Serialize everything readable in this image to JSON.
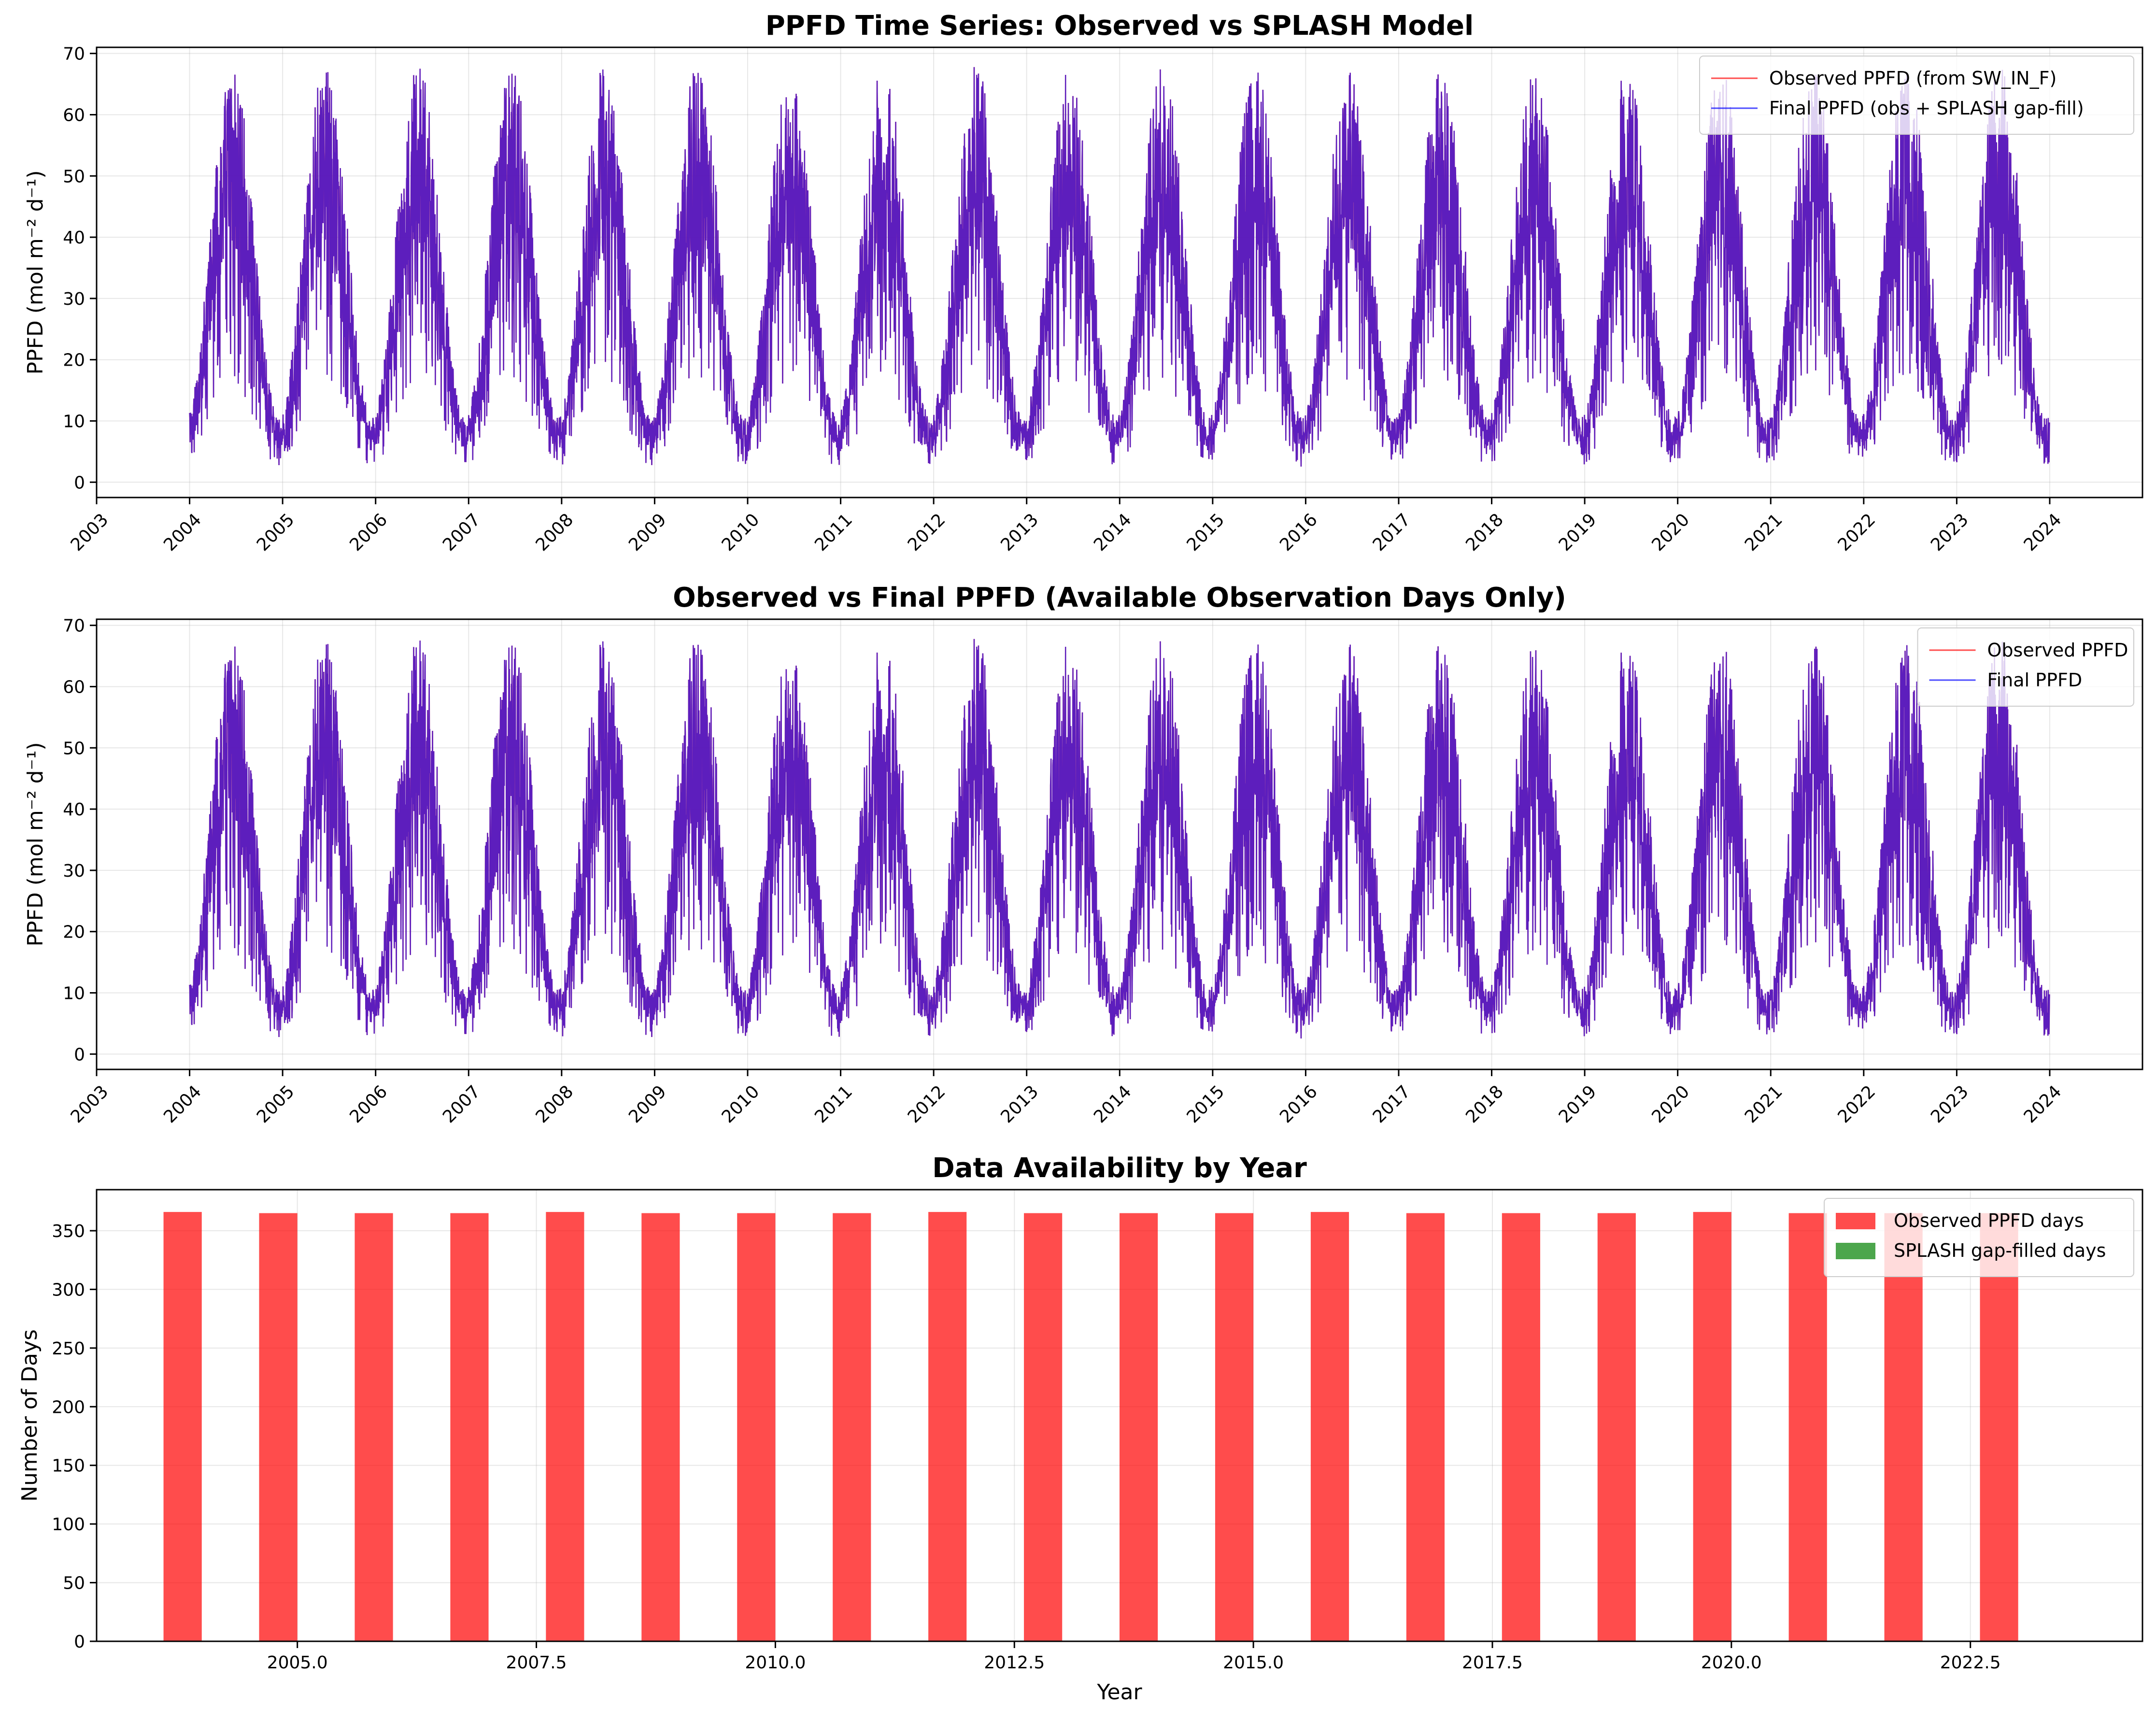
{
  "chart_data": [
    {
      "type": "line",
      "title": "PPFD Time Series: Observed vs SPLASH Model",
      "ylabel": "PPFD (mol m⁻² d⁻¹)",
      "xlabel": "",
      "xlim": [
        "2003-01-01",
        "2024-12-31"
      ],
      "ylim": [
        -2.5,
        71
      ],
      "x_ticks": [
        "2003",
        "2004",
        "2005",
        "2006",
        "2007",
        "2008",
        "2009",
        "2010",
        "2011",
        "2012",
        "2013",
        "2014",
        "2015",
        "2016",
        "2017",
        "2018",
        "2019",
        "2020",
        "2021",
        "2022",
        "2023",
        "2024"
      ],
      "y_ticks": [
        0,
        10,
        20,
        30,
        40,
        50,
        60,
        70
      ],
      "grid": true,
      "legend": "top-right",
      "x_range": [
        "2004-01-01",
        "2023-12-31"
      ],
      "seasonal_cycle": {
        "winter_min": 2,
        "summer_max": 65,
        "peak_month": "June"
      },
      "series": [
        {
          "name": "Observed PPFD (from SW_IN_F)",
          "color": "#ff0000"
        },
        {
          "name": "Final PPFD (obs + SPLASH gap-fill)",
          "color": "#0000ff"
        }
      ],
      "colors": {
        "overlap": "#4b1ccc"
      }
    },
    {
      "type": "line",
      "title": "Observed vs Final PPFD (Available Observation Days Only)",
      "ylabel": "PPFD (mol m⁻² d⁻¹)",
      "xlabel": "",
      "xlim": [
        "2003-01-01",
        "2024-12-31"
      ],
      "ylim": [
        -2.5,
        71
      ],
      "x_ticks": [
        "2003",
        "2004",
        "2005",
        "2006",
        "2007",
        "2008",
        "2009",
        "2010",
        "2011",
        "2012",
        "2013",
        "2014",
        "2015",
        "2016",
        "2017",
        "2018",
        "2019",
        "2020",
        "2021",
        "2022",
        "2023",
        "2024"
      ],
      "y_ticks": [
        0,
        10,
        20,
        30,
        40,
        50,
        60,
        70
      ],
      "grid": true,
      "legend": "top-right",
      "x_range": [
        "2004-01-01",
        "2023-12-31"
      ],
      "seasonal_cycle": {
        "winter_min": 2,
        "summer_max": 65,
        "peak_month": "June"
      },
      "series": [
        {
          "name": "Observed PPFD",
          "color": "#ff0000"
        },
        {
          "name": "Final PPFD",
          "color": "#0000ff"
        }
      ],
      "colors": {
        "overlap": "#4b1ccc"
      }
    },
    {
      "type": "bar",
      "title": "Data Availability by Year",
      "xlabel": "Year",
      "ylabel": "Number of Days",
      "xlim": [
        2002.9,
        2024.3
      ],
      "ylim": [
        0,
        385
      ],
      "x_ticks": [
        "2005.0",
        "2007.5",
        "2010.0",
        "2012.5",
        "2015.0",
        "2017.5",
        "2020.0",
        "2022.5"
      ],
      "x_tick_values": [
        2005.0,
        2007.5,
        2010.0,
        2012.5,
        2015.0,
        2017.5,
        2020.0,
        2022.5
      ],
      "y_ticks": [
        0,
        50,
        100,
        150,
        200,
        250,
        300,
        350
      ],
      "grid": true,
      "legend": "top-right",
      "categories": [
        2004,
        2005,
        2006,
        2007,
        2008,
        2009,
        2010,
        2011,
        2012,
        2013,
        2014,
        2015,
        2016,
        2017,
        2018,
        2019,
        2020,
        2021,
        2022,
        2023
      ],
      "series": [
        {
          "name": "Observed PPFD days",
          "color": "#ff0000",
          "values": [
            366,
            365,
            365,
            365,
            366,
            365,
            365,
            365,
            366,
            365,
            365,
            365,
            366,
            365,
            365,
            365,
            366,
            365,
            365,
            365
          ]
        },
        {
          "name": "SPLASH gap-filled days",
          "color": "#008000",
          "values": [
            0,
            0,
            0,
            0,
            0,
            0,
            0,
            0,
            0,
            0,
            0,
            0,
            0,
            0,
            0,
            0,
            0,
            0,
            0,
            0
          ]
        }
      ]
    }
  ]
}
